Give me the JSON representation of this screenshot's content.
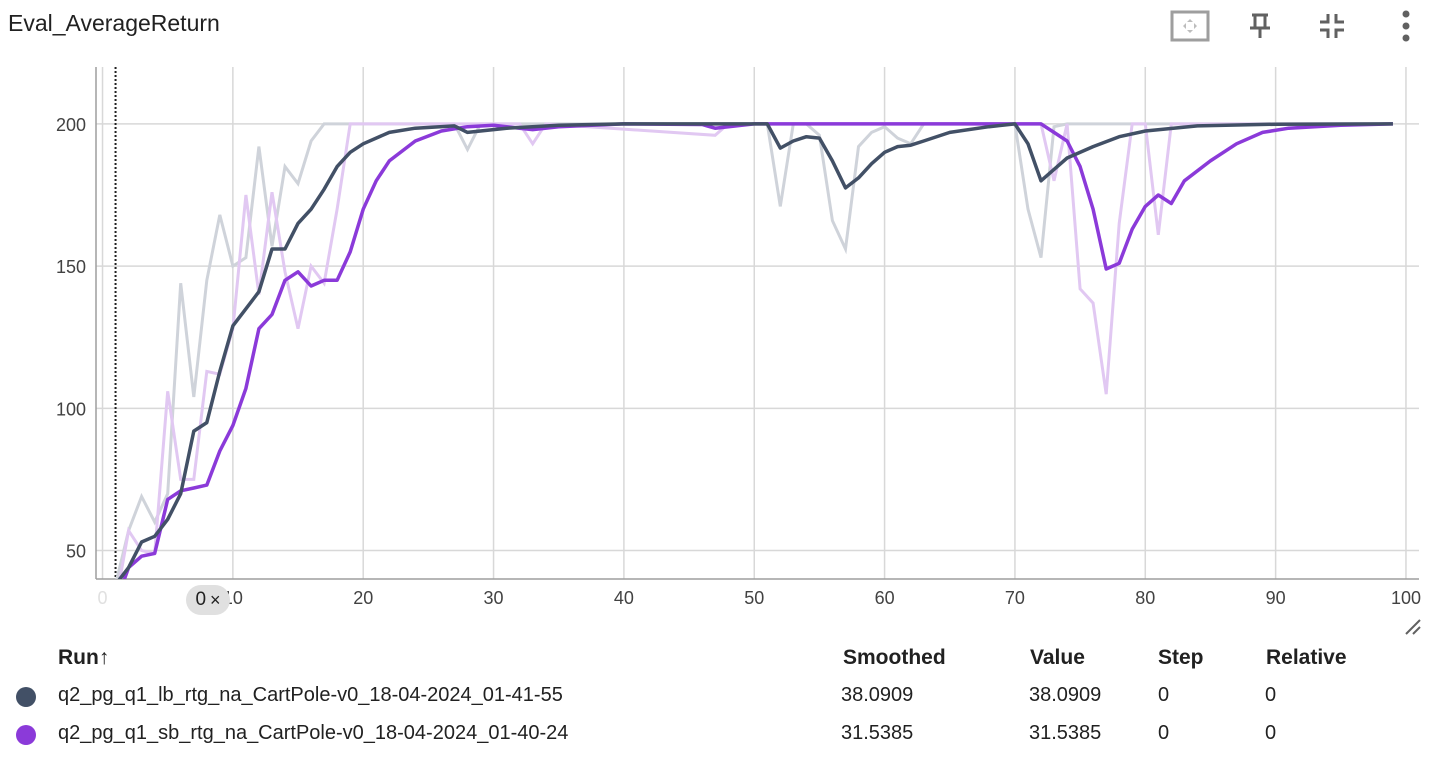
{
  "header": {
    "title": "Eval_AverageReturn",
    "buttons": [
      {
        "icon": "fit-to-data-icon"
      },
      {
        "icon": "pin-icon"
      },
      {
        "icon": "collapse-icon"
      },
      {
        "icon": "more-vert-icon"
      }
    ]
  },
  "step_chip": {
    "value": "0",
    "close": "×"
  },
  "chart_data": {
    "type": "line",
    "title": "Eval_AverageReturn",
    "xlabel": "",
    "ylabel": "",
    "xlim": [
      -0.5,
      101
    ],
    "ylim": [
      40,
      220
    ],
    "xticks": [
      "0",
      "10",
      "20",
      "30",
      "40",
      "50",
      "60",
      "70",
      "80",
      "90",
      "100",
      "1"
    ],
    "yticks": [
      "50",
      "100",
      "150",
      "200"
    ],
    "grid": true,
    "series": [
      {
        "name": "q2_pg_q1_lb_rtg_na_CartPole-v0_18-04-2024_01-41-55",
        "color": "#425066",
        "raw_color": "#cfd3da",
        "smoothed": [
          [
            1,
            38.1
          ],
          [
            2,
            44
          ],
          [
            3,
            53
          ],
          [
            4,
            55
          ],
          [
            5,
            61
          ],
          [
            6,
            70
          ],
          [
            7,
            92
          ],
          [
            8,
            95
          ],
          [
            9,
            113
          ],
          [
            10,
            129
          ],
          [
            11,
            135
          ],
          [
            12,
            141
          ],
          [
            13,
            156
          ],
          [
            14,
            156
          ],
          [
            15,
            165
          ],
          [
            16,
            170
          ],
          [
            17,
            177
          ],
          [
            18,
            185
          ],
          [
            19,
            190
          ],
          [
            20,
            193
          ],
          [
            22,
            197
          ],
          [
            24,
            198.5
          ],
          [
            27,
            199.3
          ],
          [
            28,
            197
          ],
          [
            29,
            197.5
          ],
          [
            31,
            198.5
          ],
          [
            35,
            199.5
          ],
          [
            40,
            200
          ],
          [
            51,
            200
          ],
          [
            52,
            191.5
          ],
          [
            53,
            194
          ],
          [
            54,
            195.5
          ],
          [
            55,
            195
          ],
          [
            56,
            187
          ],
          [
            57,
            177.5
          ],
          [
            58,
            181
          ],
          [
            59,
            186
          ],
          [
            60,
            190
          ],
          [
            61,
            192
          ],
          [
            62,
            192.5
          ],
          [
            63,
            194
          ],
          [
            65,
            197
          ],
          [
            68,
            199
          ],
          [
            70,
            200
          ],
          [
            71,
            193
          ],
          [
            72,
            180
          ],
          [
            73,
            184
          ],
          [
            74,
            188
          ],
          [
            76,
            192
          ],
          [
            78,
            195.5
          ],
          [
            80,
            197.5
          ],
          [
            84,
            199.3
          ],
          [
            90,
            199.9
          ],
          [
            99,
            200
          ]
        ],
        "raw": [
          [
            1,
            38.1
          ],
          [
            2,
            57
          ],
          [
            3,
            69
          ],
          [
            4,
            60
          ],
          [
            5,
            70
          ],
          [
            6,
            144
          ],
          [
            7,
            104
          ],
          [
            8,
            145
          ],
          [
            9,
            168
          ],
          [
            10,
            150
          ],
          [
            11,
            153
          ],
          [
            12,
            192
          ],
          [
            13,
            157
          ],
          [
            14,
            185
          ],
          [
            15,
            179
          ],
          [
            16,
            194
          ],
          [
            17,
            200
          ],
          [
            26,
            200
          ],
          [
            27,
            200
          ],
          [
            28,
            191
          ],
          [
            29,
            200
          ],
          [
            50,
            200
          ],
          [
            51,
            200
          ],
          [
            52,
            171
          ],
          [
            53,
            200
          ],
          [
            54,
            200
          ],
          [
            55,
            196
          ],
          [
            56,
            166
          ],
          [
            57,
            156
          ],
          [
            58,
            192
          ],
          [
            59,
            197
          ],
          [
            60,
            199
          ],
          [
            61,
            195
          ],
          [
            62,
            193
          ],
          [
            63,
            200
          ],
          [
            70,
            200
          ],
          [
            71,
            170
          ],
          [
            72,
            153
          ],
          [
            73,
            199
          ],
          [
            74,
            200
          ],
          [
            99,
            200
          ]
        ]
      },
      {
        "name": "q2_pg_q1_sb_rtg_na_CartPole-v0_18-04-2024_01-40-24",
        "color": "#8b3ad9",
        "raw_color": "#e1c8f2",
        "smoothed": [
          [
            1,
            31.5
          ],
          [
            2,
            44
          ],
          [
            3,
            48
          ],
          [
            4,
            49
          ],
          [
            5,
            68
          ],
          [
            6,
            71
          ],
          [
            7,
            72
          ],
          [
            8,
            73
          ],
          [
            9,
            85
          ],
          [
            10,
            94
          ],
          [
            11,
            107
          ],
          [
            12,
            128
          ],
          [
            13,
            133
          ],
          [
            14,
            145
          ],
          [
            15,
            148
          ],
          [
            16,
            143
          ],
          [
            17,
            145
          ],
          [
            18,
            145
          ],
          [
            19,
            155
          ],
          [
            20,
            170
          ],
          [
            21,
            180
          ],
          [
            22,
            187
          ],
          [
            24,
            194
          ],
          [
            26,
            197.5
          ],
          [
            28,
            199
          ],
          [
            30,
            199.5
          ],
          [
            32,
            198.5
          ],
          [
            33,
            198
          ],
          [
            35,
            199
          ],
          [
            40,
            200
          ],
          [
            46,
            199.8
          ],
          [
            47,
            198.5
          ],
          [
            50,
            200
          ],
          [
            70,
            200
          ],
          [
            72,
            200
          ],
          [
            73,
            197
          ],
          [
            74,
            194
          ],
          [
            75,
            185
          ],
          [
            76,
            170
          ],
          [
            77,
            149
          ],
          [
            78,
            151
          ],
          [
            79,
            163
          ],
          [
            80,
            171
          ],
          [
            81,
            175
          ],
          [
            82,
            172
          ],
          [
            83,
            180
          ],
          [
            85,
            187
          ],
          [
            87,
            193
          ],
          [
            89,
            197
          ],
          [
            91,
            198.5
          ],
          [
            95,
            199.5
          ],
          [
            99,
            200
          ]
        ],
        "raw": [
          [
            1,
            31.5
          ],
          [
            2,
            57
          ],
          [
            3,
            50
          ],
          [
            4,
            49
          ],
          [
            5,
            106
          ],
          [
            6,
            75
          ],
          [
            7,
            75
          ],
          [
            8,
            113
          ],
          [
            9,
            112
          ],
          [
            10,
            128
          ],
          [
            11,
            175
          ],
          [
            12,
            140
          ],
          [
            13,
            176
          ],
          [
            14,
            148
          ],
          [
            15,
            128
          ],
          [
            16,
            150
          ],
          [
            17,
            144
          ],
          [
            18,
            170
          ],
          [
            19,
            200
          ],
          [
            20,
            200
          ],
          [
            32,
            200
          ],
          [
            33,
            193
          ],
          [
            34,
            200
          ],
          [
            47,
            196
          ],
          [
            48,
            200
          ],
          [
            72,
            200
          ],
          [
            73,
            180
          ],
          [
            74,
            200
          ],
          [
            75,
            142
          ],
          [
            76,
            137
          ],
          [
            77,
            105
          ],
          [
            78,
            165
          ],
          [
            79,
            200
          ],
          [
            80,
            200
          ],
          [
            81,
            161
          ],
          [
            82,
            200
          ],
          [
            99,
            200
          ]
        ]
      }
    ]
  },
  "runs_table": {
    "columns": {
      "run": "Run",
      "run_sort_icon": "↑",
      "smoothed": "Smoothed",
      "value": "Value",
      "step": "Step",
      "relative": "Relative"
    },
    "rows": [
      {
        "color": "#425066",
        "run": "q2_pg_q1_lb_rtg_na_CartPole-v0_18-04-2024_01-41-55",
        "smoothed": "38.0909",
        "value": "38.0909",
        "step": "0",
        "relative": "0"
      },
      {
        "color": "#8b3ad9",
        "run": "q2_pg_q1_sb_rtg_na_CartPole-v0_18-04-2024_01-40-24",
        "smoothed": "31.5385",
        "value": "31.5385",
        "step": "0",
        "relative": "0"
      }
    ]
  }
}
